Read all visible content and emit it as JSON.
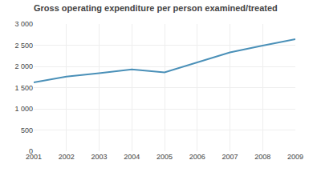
{
  "chart_data": {
    "type": "line",
    "title": "Gross operating expenditure per person examined/treated",
    "x": [
      2001,
      2002,
      2003,
      2004,
      2005,
      2006,
      2007,
      2008,
      2009
    ],
    "values": [
      1620,
      1760,
      1840,
      1930,
      1860,
      2100,
      2330,
      2490,
      2640
    ],
    "color": "#4a90b8",
    "xlim": [
      2001,
      2009
    ],
    "xticks": [
      2001,
      2002,
      2003,
      2004,
      2005,
      2006,
      2007,
      2008,
      2009
    ],
    "ylim": [
      0,
      3000
    ],
    "yticks": [
      0,
      500,
      {
        "value": 1000,
        "label": "1 000"
      },
      {
        "value": 1500,
        "label": "1 500"
      },
      {
        "value": 2000,
        "label": "2 000"
      },
      {
        "value": 2500,
        "label": "2 500"
      },
      {
        "value": 3000,
        "label": "3 000"
      }
    ],
    "grid": true
  }
}
